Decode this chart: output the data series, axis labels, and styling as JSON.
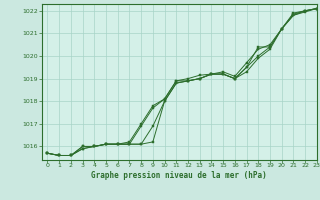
{
  "title": "Graphe pression niveau de la mer (hPa)",
  "background_color": "#cbe8e0",
  "plot_bg_color": "#d4f0e8",
  "grid_color": "#a8d4c8",
  "line_color": "#2d6e2d",
  "marker_color": "#2d6e2d",
  "xlim": [
    -0.5,
    23
  ],
  "ylim": [
    1015.4,
    1022.3
  ],
  "yticks": [
    1016,
    1017,
    1018,
    1019,
    1020,
    1021,
    1022
  ],
  "xticks": [
    0,
    1,
    2,
    3,
    4,
    5,
    6,
    7,
    8,
    9,
    10,
    11,
    12,
    13,
    14,
    15,
    16,
    17,
    18,
    19,
    20,
    21,
    22,
    23
  ],
  "series": [
    [
      1015.7,
      1015.6,
      1015.6,
      1015.9,
      1016.0,
      1016.1,
      1016.1,
      1016.1,
      1016.1,
      1016.2,
      1018.0,
      1018.8,
      1018.9,
      1019.0,
      1019.2,
      1019.2,
      1019.0,
      1019.3,
      1019.9,
      1020.3,
      1021.2,
      1021.8,
      1021.95,
      1022.1
    ],
    [
      1015.7,
      1015.6,
      1015.6,
      1015.9,
      1016.0,
      1016.1,
      1016.1,
      1016.1,
      1016.1,
      1016.9,
      1018.0,
      1018.8,
      1018.9,
      1019.0,
      1019.2,
      1019.2,
      1019.0,
      1019.5,
      1020.0,
      1020.4,
      1021.2,
      1021.85,
      1022.0,
      1022.1
    ],
    [
      1015.7,
      1015.6,
      1015.6,
      1016.0,
      1016.0,
      1016.1,
      1016.1,
      1016.1,
      1016.9,
      1017.7,
      1018.1,
      1018.9,
      1019.0,
      1019.15,
      1019.2,
      1019.3,
      1019.1,
      1019.7,
      1020.3,
      1020.5,
      1021.2,
      1021.8,
      1022.0,
      1022.1
    ],
    [
      1015.7,
      1015.6,
      1015.6,
      1016.0,
      1016.0,
      1016.1,
      1016.1,
      1016.2,
      1017.0,
      1017.8,
      1018.1,
      1018.9,
      1018.9,
      1019.0,
      1019.2,
      1019.2,
      1019.0,
      1019.5,
      1020.4,
      1020.4,
      1021.2,
      1021.9,
      1022.0,
      1022.1
    ]
  ]
}
